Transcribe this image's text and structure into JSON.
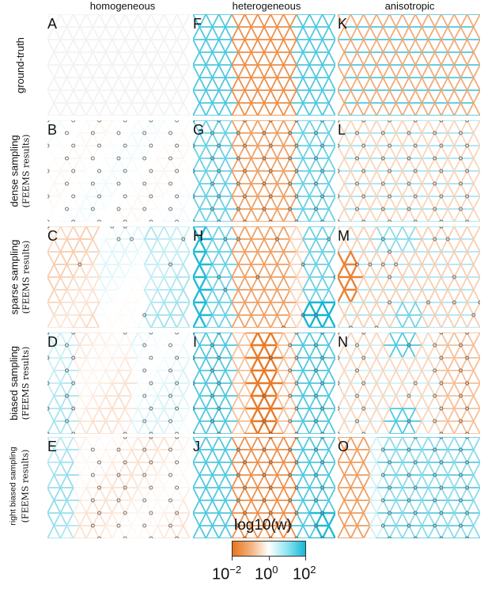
{
  "columns": [
    "homogeneous",
    "heterogeneous",
    "anisotropic"
  ],
  "rows": [
    {
      "main": "ground-truth",
      "sub": ""
    },
    {
      "main": "dense sampling",
      "sub": "(FEEMS results)"
    },
    {
      "main": "sparse sampling",
      "sub": "(FEEMS results)"
    },
    {
      "main": "biased sampling",
      "sub": "(FEEMS results)"
    },
    {
      "main": "right biased sampling",
      "sub": "(FEEMS results)"
    }
  ],
  "panel_letters": [
    [
      "A",
      "F",
      "K"
    ],
    [
      "B",
      "G",
      "L"
    ],
    [
      "C",
      "H",
      "M"
    ],
    [
      "D",
      "I",
      "N"
    ],
    [
      "E",
      "J",
      "O"
    ]
  ],
  "colorbar": {
    "title": "log10(w)",
    "ticks": [
      {
        "base": "10",
        "exp": "−2"
      },
      {
        "base": "10",
        "exp": "0"
      },
      {
        "base": "10",
        "exp": "2"
      }
    ],
    "colors": {
      "low": "#e8731c",
      "mid": "#ffffff",
      "high": "#16b6d4"
    }
  }
}
